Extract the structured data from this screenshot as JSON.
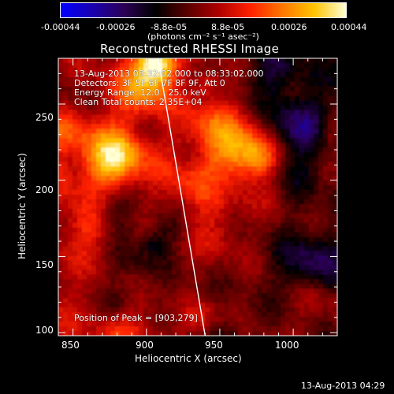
{
  "colorbar": {
    "tick_labels": [
      "-0.00044",
      "-0.00026",
      "-8.8e-05",
      "8.8e-05",
      "0.00026",
      "0.00044"
    ],
    "unit_label": "(photons cm⁻² s⁻¹ asec⁻²)",
    "colors": [
      "#0000ff",
      "#1a00b0",
      "#2b0055",
      "#000000",
      "#5a0000",
      "#b00000",
      "#ff2200",
      "#ff7700",
      "#ffc400",
      "#ffffd8"
    ]
  },
  "title": "Reconstructed RHESSI Image",
  "annotations": {
    "time_range": "13-Aug-2013 08:32:02.000 to 08:33:02.000",
    "detectors": "Detectors: 3F 5F 6F 7F 8F 9F, Att 0",
    "energy_range": "Energy Range: 12.0 - 25.0 keV",
    "clean_counts": "Clean     Total counts: 2.35E+04",
    "peak_position": "Position of Peak = [903,279]"
  },
  "axes": {
    "x_label": "Heliocentric X (arcsec)",
    "y_label": "Heliocentric Y (arcsec)",
    "x_range": [
      840,
      1030
    ],
    "y_range": [
      98,
      280
    ],
    "x_ticks": [
      "850",
      "900",
      "950",
      "1000"
    ],
    "y_ticks": [
      "100",
      "150",
      "200",
      "250"
    ]
  },
  "limb_line": {
    "x": [
      908,
      940
    ],
    "y": [
      280,
      98
    ]
  },
  "footer": {
    "timestamp": "13-Aug-2013 04:29"
  }
}
